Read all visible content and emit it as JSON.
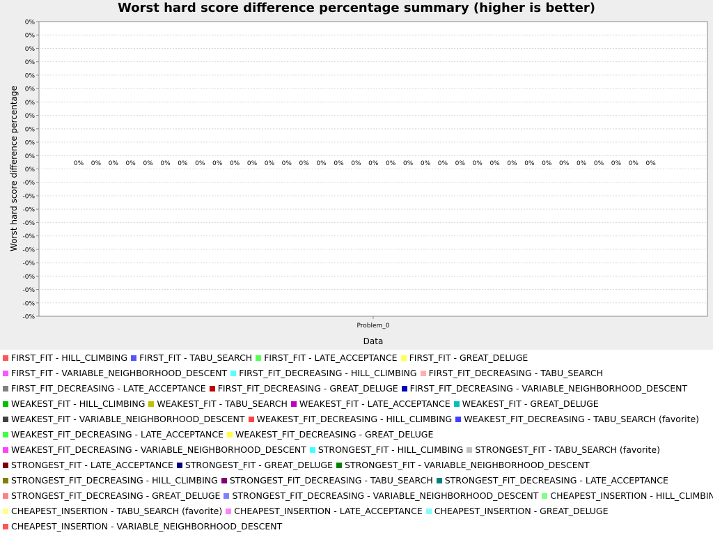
{
  "chart_data": {
    "type": "bar",
    "title": "Worst hard score difference percentage summary (higher is better)",
    "xlabel": "Data",
    "ylabel": "Worst hard score difference percentage",
    "categories": [
      "Problem_0"
    ],
    "y_tick_labels": [
      "0%",
      "0%",
      "0%",
      "0%",
      "0%",
      "0%",
      "0%",
      "0%",
      "0%",
      "0%",
      "0%",
      "0%",
      "-0%",
      "-0%",
      "-0%",
      "-0%",
      "-0%",
      "-0%",
      "-0%",
      "-0%",
      "-0%",
      "-0%",
      "-0%"
    ],
    "ylim": [
      -0.0001,
      0.0001
    ],
    "grid": true,
    "legend_position": "bottom",
    "series": [
      {
        "name": "FIRST_FIT - HILL_CLIMBING",
        "color": "#ff5555",
        "values": [
          0
        ],
        "label": "0%"
      },
      {
        "name": "FIRST_FIT - TABU_SEARCH",
        "color": "#5555ff",
        "values": [
          0
        ],
        "label": "0%"
      },
      {
        "name": "FIRST_FIT - LATE_ACCEPTANCE",
        "color": "#55ff55",
        "values": [
          0
        ],
        "label": "0%"
      },
      {
        "name": "FIRST_FIT - GREAT_DELUGE",
        "color": "#ffff55",
        "values": [
          0
        ],
        "label": "0%"
      },
      {
        "name": "FIRST_FIT - VARIABLE_NEIGHBORHOOD_DESCENT",
        "color": "#ff55ff",
        "values": [
          0
        ],
        "label": "0%"
      },
      {
        "name": "FIRST_FIT_DECREASING - HILL_CLIMBING",
        "color": "#55ffff",
        "values": [
          0
        ],
        "label": "0%"
      },
      {
        "name": "FIRST_FIT_DECREASING - TABU_SEARCH",
        "color": "#ffafaf",
        "values": [
          0
        ],
        "label": "0%"
      },
      {
        "name": "FIRST_FIT_DECREASING - LATE_ACCEPTANCE",
        "color": "#808080",
        "values": [
          0
        ],
        "label": "0%"
      },
      {
        "name": "FIRST_FIT_DECREASING - GREAT_DELUGE",
        "color": "#c00000",
        "values": [
          0
        ],
        "label": "0%"
      },
      {
        "name": "FIRST_FIT_DECREASING - VARIABLE_NEIGHBORHOOD_DESCENT",
        "color": "#0000c0",
        "values": [
          0
        ],
        "label": "0%"
      },
      {
        "name": "WEAKEST_FIT - HILL_CLIMBING",
        "color": "#00c000",
        "values": [
          0
        ],
        "label": "0%"
      },
      {
        "name": "WEAKEST_FIT - TABU_SEARCH",
        "color": "#c0c000",
        "values": [
          0
        ],
        "label": "0%"
      },
      {
        "name": "WEAKEST_FIT - LATE_ACCEPTANCE",
        "color": "#c000c0",
        "values": [
          0
        ],
        "label": "0%"
      },
      {
        "name": "WEAKEST_FIT - GREAT_DELUGE",
        "color": "#00c0c0",
        "values": [
          0
        ],
        "label": "0%"
      },
      {
        "name": "WEAKEST_FIT - VARIABLE_NEIGHBORHOOD_DESCENT",
        "color": "#404040",
        "values": [
          0
        ],
        "label": "0%"
      },
      {
        "name": "WEAKEST_FIT_DECREASING - HILL_CLIMBING",
        "color": "#ff4040",
        "values": [
          0
        ],
        "label": "0%"
      },
      {
        "name": "WEAKEST_FIT_DECREASING - TABU_SEARCH (favorite)",
        "color": "#4040ff",
        "values": [
          0
        ],
        "label": "0%"
      },
      {
        "name": "WEAKEST_FIT_DECREASING - LATE_ACCEPTANCE",
        "color": "#40ff40",
        "values": [
          0
        ],
        "label": "0%"
      },
      {
        "name": "WEAKEST_FIT_DECREASING - GREAT_DELUGE",
        "color": "#ffff40",
        "values": [
          0
        ],
        "label": "0%"
      },
      {
        "name": "WEAKEST_FIT_DECREASING - VARIABLE_NEIGHBORHOOD_DESCENT",
        "color": "#ff40ff",
        "values": [
          0
        ],
        "label": "0%"
      },
      {
        "name": "STRONGEST_FIT - HILL_CLIMBING",
        "color": "#40ffff",
        "values": [
          0
        ],
        "label": "0%"
      },
      {
        "name": "STRONGEST_FIT - TABU_SEARCH (favorite)",
        "color": "#c0c0c0",
        "values": [
          0
        ],
        "label": "0%"
      },
      {
        "name": "STRONGEST_FIT - LATE_ACCEPTANCE",
        "color": "#800000",
        "values": [
          0
        ],
        "label": "0%"
      },
      {
        "name": "STRONGEST_FIT - GREAT_DELUGE",
        "color": "#000080",
        "values": [
          0
        ],
        "label": "0%"
      },
      {
        "name": "STRONGEST_FIT - VARIABLE_NEIGHBORHOOD_DESCENT",
        "color": "#008000",
        "values": [
          0
        ],
        "label": "0%"
      },
      {
        "name": "STRONGEST_FIT_DECREASING - HILL_CLIMBING",
        "color": "#808000",
        "values": [
          0
        ],
        "label": "0%"
      },
      {
        "name": "STRONGEST_FIT_DECREASING - TABU_SEARCH",
        "color": "#800080",
        "values": [
          0
        ],
        "label": "0%"
      },
      {
        "name": "STRONGEST_FIT_DECREASING - LATE_ACCEPTANCE",
        "color": "#008080",
        "values": [
          0
        ],
        "label": "0%"
      },
      {
        "name": "STRONGEST_FIT_DECREASING - GREAT_DELUGE",
        "color": "#ff8080",
        "values": [
          0
        ],
        "label": "0%"
      },
      {
        "name": "STRONGEST_FIT_DECREASING - VARIABLE_NEIGHBORHOOD_DESCENT",
        "color": "#8080ff",
        "values": [
          0
        ],
        "label": "0%"
      },
      {
        "name": "CHEAPEST_INSERTION - HILL_CLIMBING",
        "color": "#80ff80",
        "values": [
          0
        ],
        "label": "0%"
      },
      {
        "name": "CHEAPEST_INSERTION - TABU_SEARCH (favorite)",
        "color": "#ffff80",
        "values": [
          0
        ],
        "label": "0%"
      },
      {
        "name": "CHEAPEST_INSERTION - LATE_ACCEPTANCE",
        "color": "#ff80ff",
        "values": [
          0
        ],
        "label": "0%"
      },
      {
        "name": "CHEAPEST_INSERTION - GREAT_DELUGE",
        "color": "#80ffff",
        "values": [
          0
        ],
        "label": "0%"
      },
      {
        "name": "CHEAPEST_INSERTION - VARIABLE_NEIGHBORHOOD_DESCENT",
        "color": "#ff5555",
        "values": [
          0
        ],
        "label": null
      }
    ]
  }
}
